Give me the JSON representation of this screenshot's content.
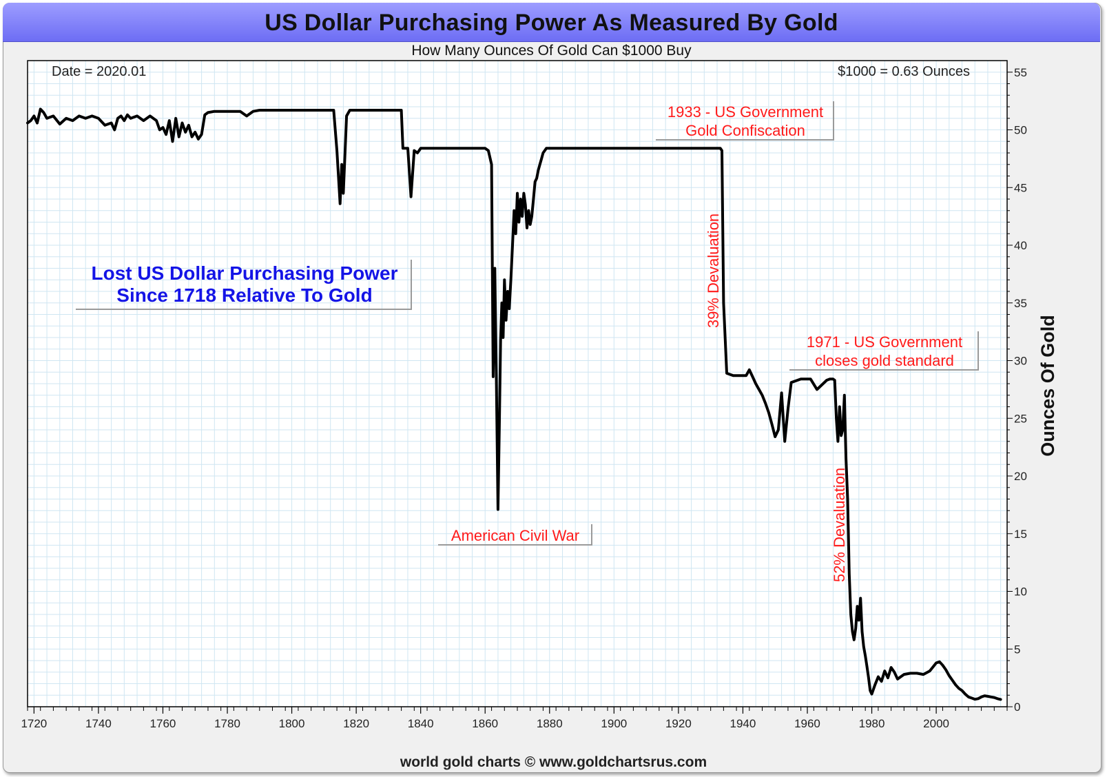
{
  "header": {
    "title": "US Dollar Purchasing Power As Measured By Gold",
    "subtitle": "How Many Ounces Of Gold Can $1000 Buy"
  },
  "footer": {
    "credit": "world gold charts © www.goldchartsrus.com"
  },
  "colors": {
    "line": "#000000",
    "grid": "#cfe6f2",
    "annotation_red": "#ff1a1a",
    "annotation_blue": "#1414e6",
    "title_bar": "#7f7ff8"
  },
  "chart_data": {
    "type": "line",
    "title": "US Dollar Purchasing Power As Measured By Gold",
    "subtitle": "How Many Ounces Of Gold Can $1000 Buy",
    "xlabel": "",
    "ylabel": "Ounces Of Gold",
    "xlim": [
      1718,
      2022
    ],
    "ylim": [
      0,
      56
    ],
    "y_axis_side": "right",
    "grid": true,
    "x_ticks": [
      1720,
      1740,
      1760,
      1780,
      1800,
      1820,
      1840,
      1860,
      1880,
      1900,
      1920,
      1940,
      1960,
      1980,
      2000
    ],
    "y_ticks": [
      0,
      5,
      10,
      15,
      20,
      25,
      30,
      35,
      40,
      45,
      50,
      55
    ],
    "top_left_label": "Date = 2020.01",
    "top_right_label": "$1000 = 0.63 Ounces",
    "annotations": {
      "lost_purchasing_power_line1": "Lost US Dollar Purchasing Power",
      "lost_purchasing_power_line2": "Since 1718 Relative To Gold",
      "confiscation_line1": "1933 - US Government",
      "confiscation_line2": "Gold Confiscation",
      "devaluation_1933": "39% Devaluation",
      "gold_standard_line1": "1971 - US Government",
      "gold_standard_line2": "closes gold standard",
      "devaluation_1971": "52% Devaluation",
      "civil_war": "American Civil War"
    },
    "series": [
      {
        "x": [
          1718,
          1719,
          1720,
          1721,
          1722,
          1723,
          1724,
          1726,
          1728,
          1730,
          1732,
          1734,
          1736,
          1738,
          1740,
          1742,
          1744,
          1745,
          1746,
          1747,
          1748,
          1749,
          1750,
          1752,
          1754,
          1756,
          1758,
          1759,
          1760,
          1761,
          1762,
          1763,
          1764,
          1765,
          1766,
          1767,
          1768,
          1769,
          1770,
          1771,
          1772,
          1773,
          1774,
          1776,
          1780,
          1784,
          1786,
          1788,
          1790,
          1800,
          1810,
          1813,
          1814,
          1815,
          1815.5,
          1816,
          1817,
          1818,
          1820,
          1830,
          1834,
          1834.5,
          1836,
          1837,
          1838,
          1839,
          1840,
          1845,
          1850,
          1855,
          1860,
          1861,
          1862,
          1862.5,
          1863,
          1863.5,
          1864,
          1864.4,
          1864.8,
          1865.2,
          1865.6,
          1866,
          1866.5,
          1867,
          1867.5,
          1868,
          1868.5,
          1869,
          1869.5,
          1870,
          1870.5,
          1871,
          1871.5,
          1872,
          1872.5,
          1873,
          1873.5,
          1874,
          1874.5,
          1875,
          1875.5,
          1876,
          1876.5,
          1877,
          1877.5,
          1878,
          1878.5,
          1879,
          1880,
          1900,
          1920,
          1933,
          1933.5,
          1934,
          1935,
          1937,
          1940,
          1941,
          1942,
          1943,
          1944,
          1945,
          1946,
          1947,
          1948,
          1949,
          1950,
          1951,
          1952,
          1953,
          1954,
          1955,
          1958,
          1960,
          1961,
          1963,
          1966,
          1967,
          1968,
          1968.5,
          1969,
          1969.5,
          1970,
          1970.5,
          1971,
          1971.5,
          1972,
          1972.5,
          1973,
          1973.5,
          1974,
          1974.5,
          1975,
          1975.5,
          1976,
          1976.5,
          1977,
          1977.5,
          1978,
          1978.5,
          1979,
          1979.5,
          1980,
          1981,
          1982,
          1983,
          1984,
          1985,
          1986,
          1987,
          1988,
          1990,
          1992,
          1994,
          1996,
          1998,
          2000,
          2001,
          2002,
          2003,
          2004,
          2005,
          2006,
          2007,
          2008,
          2009,
          2010,
          2011,
          2012,
          2013,
          2014,
          2015,
          2016,
          2017,
          2018,
          2019,
          2020
        ],
        "y": [
          50.6,
          50.8,
          51.2,
          50.6,
          51.8,
          51.5,
          51.0,
          51.2,
          50.5,
          51.0,
          50.8,
          51.2,
          51.0,
          51.2,
          51.0,
          50.4,
          50.6,
          50.0,
          51.0,
          51.2,
          50.8,
          51.3,
          51.0,
          51.2,
          50.8,
          51.2,
          50.8,
          50.0,
          50.2,
          49.6,
          50.8,
          49.0,
          51.0,
          49.4,
          50.6,
          49.8,
          50.4,
          49.4,
          49.8,
          49.2,
          49.6,
          51.3,
          51.5,
          51.6,
          51.6,
          51.6,
          51.2,
          51.6,
          51.7,
          51.7,
          51.7,
          51.7,
          48.2,
          43.6,
          47.0,
          44.5,
          51.2,
          51.7,
          51.7,
          51.7,
          51.7,
          48.4,
          48.4,
          44.2,
          48.2,
          48.0,
          48.4,
          48.4,
          48.4,
          48.4,
          48.4,
          48.2,
          47.0,
          28.6,
          38.0,
          28.2,
          17.1,
          24.0,
          31.8,
          35.0,
          32.0,
          37.0,
          33.5,
          36.0,
          34.5,
          37.0,
          40.0,
          43.0,
          41.0,
          44.5,
          42.0,
          44.0,
          42.5,
          44.5,
          43.5,
          41.5,
          43.0,
          41.8,
          42.5,
          44.0,
          45.5,
          45.8,
          46.5,
          47.0,
          47.5,
          48.0,
          48.2,
          48.4,
          48.4,
          48.4,
          48.4,
          48.4,
          48.2,
          35.0,
          28.9,
          28.7,
          28.7,
          28.7,
          29.2,
          28.6,
          28.0,
          27.5,
          27.0,
          26.3,
          25.5,
          24.5,
          23.4,
          24.0,
          27.2,
          23.0,
          25.8,
          28.1,
          28.4,
          28.4,
          28.4,
          27.5,
          28.3,
          28.4,
          28.4,
          28.3,
          25.0,
          23.0,
          26.0,
          23.5,
          24.0,
          27.0,
          21.5,
          18.0,
          11.5,
          8.0,
          6.5,
          5.8,
          6.8,
          8.7,
          7.5,
          9.4,
          6.5,
          5.2,
          4.4,
          3.5,
          2.5,
          1.4,
          1.1,
          1.9,
          2.6,
          2.2,
          3.1,
          2.5,
          3.4,
          3.0,
          2.4,
          2.8,
          2.9,
          2.9,
          2.8,
          3.1,
          3.8,
          3.9,
          3.6,
          3.2,
          2.7,
          2.3,
          1.9,
          1.6,
          1.4,
          1.1,
          0.85,
          0.75,
          0.65,
          0.7,
          0.85,
          0.95,
          0.9,
          0.85,
          0.8,
          0.7,
          0.63
        ]
      }
    ]
  }
}
